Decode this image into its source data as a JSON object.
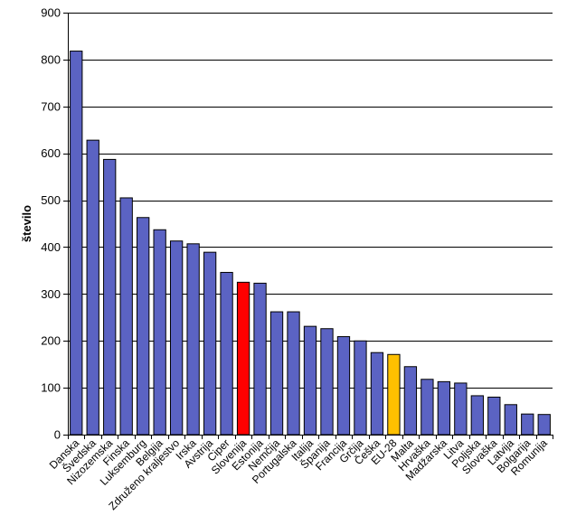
{
  "chart_data": {
    "type": "bar",
    "ylabel": "število",
    "xlabel": "",
    "ylim": [
      0,
      900
    ],
    "yticks": [
      0,
      100,
      200,
      300,
      400,
      500,
      600,
      700,
      800,
      900
    ],
    "grid": true,
    "legend": "none",
    "categories": [
      "Danska",
      "Švedska",
      "Nizozemska",
      "Finska",
      "Luksemburg",
      "Belgija",
      "Združeno kraljestvo",
      "Irska",
      "Avstrija",
      "Ciper",
      "Slovenija",
      "Estonija",
      "Nemčija",
      "Portugalska",
      "Italija",
      "Španija",
      "Francija",
      "Grčija",
      "Češka",
      "EU-28",
      "Malta",
      "Hrvaška",
      "Madžarska",
      "Litva",
      "Poljska",
      "Slovaška",
      "Latvija",
      "Bolgarija",
      "Romunija"
    ],
    "values": [
      818,
      628,
      587,
      505,
      463,
      437,
      413,
      407,
      389,
      346,
      325,
      323,
      262,
      262,
      231,
      226,
      209,
      200,
      175,
      171,
      145,
      118,
      113,
      110,
      83,
      80,
      64,
      44,
      43
    ],
    "colors": {
      "default": "#5b63c3",
      "highlight": "#ff0000",
      "eu": "#ffc000",
      "border": "#000000",
      "grid": "#000000"
    },
    "highlight_categories": {
      "Slovenija": "highlight",
      "EU-28": "eu"
    }
  }
}
